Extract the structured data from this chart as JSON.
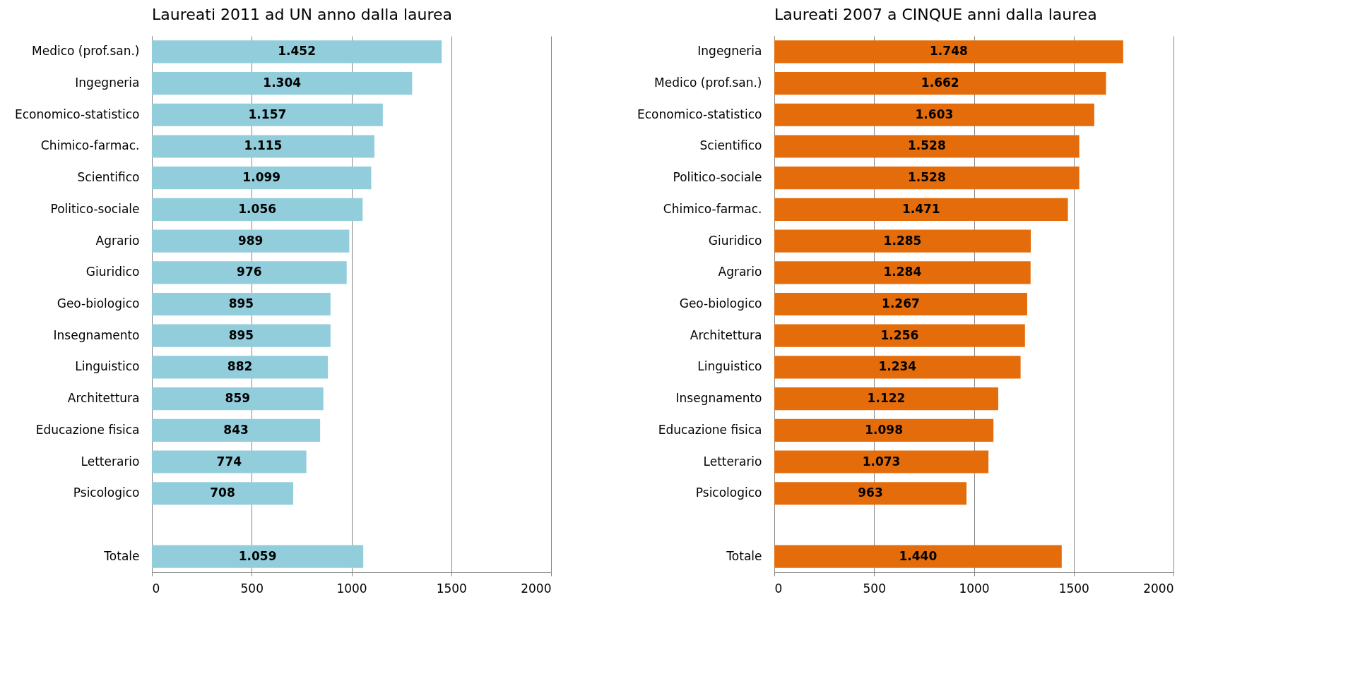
{
  "chart_data": [
    {
      "type": "bar",
      "orientation": "horizontal",
      "title": "Laureati 2011 ad UN anno dalla laurea",
      "categories": [
        "Medico (prof.san.)",
        "Ingegneria",
        "Economico-statistico",
        "Chimico-farmac.",
        "Scientifico",
        "Politico-sociale",
        "Agrario",
        "Giuridico",
        "Geo-biologico",
        "Insegnamento",
        "Linguistico",
        "Architettura",
        "Educazione fisica",
        "Letterario",
        "Psicologico",
        null,
        "Totale"
      ],
      "values": [
        1452,
        1304,
        1157,
        1115,
        1099,
        1056,
        989,
        976,
        895,
        895,
        882,
        859,
        843,
        774,
        708,
        null,
        1059
      ],
      "value_labels": [
        "1.452",
        "1.304",
        "1.157",
        "1.115",
        "1.099",
        "1.056",
        "989",
        "976",
        "895",
        "895",
        "882",
        "859",
        "843",
        "774",
        "708",
        null,
        "1.059"
      ],
      "color": "#92cddc",
      "xlim": [
        0,
        2000
      ],
      "xticks": [
        0,
        500,
        1000,
        1500,
        2000
      ],
      "grid": "x"
    },
    {
      "type": "bar",
      "orientation": "horizontal",
      "title": "Laureati 2007 a CINQUE anni dalla laurea",
      "categories": [
        "Ingegneria",
        "Medico (prof.san.)",
        "Economico-statistico",
        "Scientifico",
        "Politico-sociale",
        "Chimico-farmac.",
        "Giuridico",
        "Agrario",
        "Geo-biologico",
        "Architettura",
        "Linguistico",
        "Insegnamento",
        "Educazione fisica",
        "Letterario",
        "Psicologico",
        null,
        "Totale"
      ],
      "values": [
        1748,
        1662,
        1603,
        1528,
        1528,
        1471,
        1285,
        1284,
        1267,
        1256,
        1234,
        1122,
        1098,
        1073,
        963,
        null,
        1440
      ],
      "value_labels": [
        "1.748",
        "1.662",
        "1.603",
        "1.528",
        "1.528",
        "1.471",
        "1.285",
        "1.284",
        "1.267",
        "1.256",
        "1.234",
        "1.122",
        "1.098",
        "1.073",
        "963",
        null,
        "1.440"
      ],
      "color": "#e46c0a",
      "xlim": [
        0,
        2000
      ],
      "xticks": [
        0,
        500,
        1000,
        1500,
        2000
      ],
      "grid": "x"
    }
  ]
}
